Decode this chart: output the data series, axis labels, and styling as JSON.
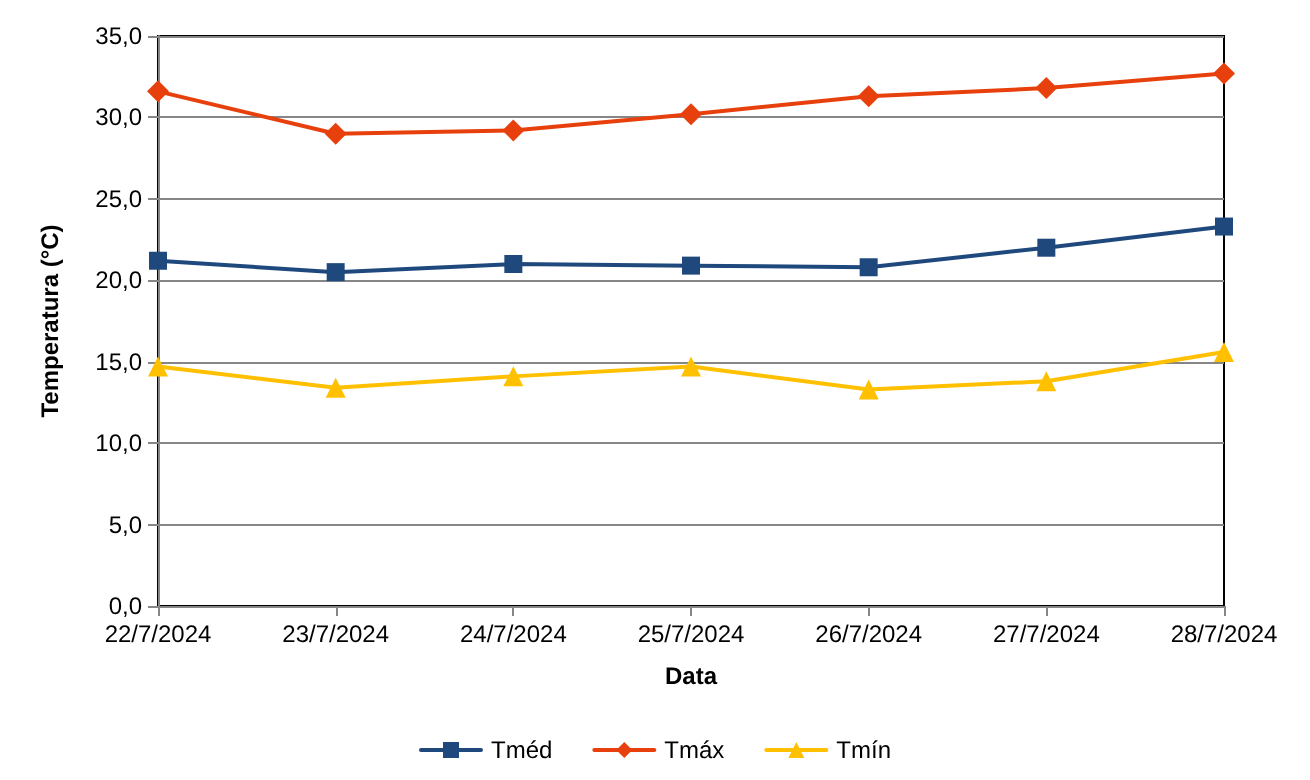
{
  "chart_data": {
    "type": "line",
    "xlabel": "Data",
    "ylabel": "Temperatura (°C)",
    "categories": [
      "22/7/2024",
      "23/7/2024",
      "24/7/2024",
      "25/7/2024",
      "26/7/2024",
      "27/7/2024",
      "28/7/2024"
    ],
    "series": [
      {
        "name": "Tméd",
        "color": "#1f497d",
        "marker": "square",
        "values": [
          21.2,
          20.5,
          21.0,
          20.9,
          20.8,
          22.0,
          23.3
        ]
      },
      {
        "name": "Tmáx",
        "color": "#e8400c",
        "marker": "diamond",
        "values": [
          31.6,
          29.0,
          29.2,
          30.2,
          31.3,
          31.8,
          32.7
        ]
      },
      {
        "name": "Tmín",
        "color": "#ffc000",
        "marker": "triangle",
        "values": [
          14.7,
          13.4,
          14.1,
          14.7,
          13.3,
          13.8,
          15.6
        ]
      }
    ],
    "ylim": [
      0,
      35
    ],
    "yticks": [
      {
        "value": 0,
        "label": "0,0"
      },
      {
        "value": 5,
        "label": "5,0"
      },
      {
        "value": 10,
        "label": "10,0"
      },
      {
        "value": 15,
        "label": "15,0"
      },
      {
        "value": 20,
        "label": "20,0"
      },
      {
        "value": 25,
        "label": "25,0"
      },
      {
        "value": 30,
        "label": "30,0"
      },
      {
        "value": 35,
        "label": "35,0"
      }
    ],
    "grid": "y",
    "legend": "bottom"
  }
}
